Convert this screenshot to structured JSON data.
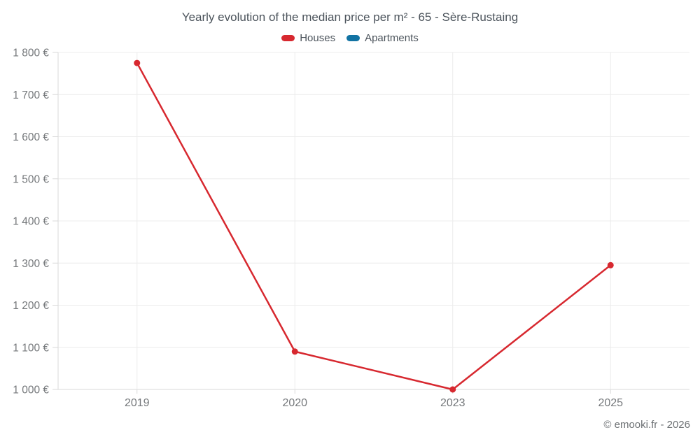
{
  "header": {
    "title": "Yearly evolution of the median price per m² - 65 - Sère-Rustaing"
  },
  "legend": {
    "items": [
      {
        "label": "Houses",
        "color": "#d7282f"
      },
      {
        "label": "Apartments",
        "color": "#1273a3"
      }
    ]
  },
  "footer": {
    "credit": "© emooki.fr - 2026"
  },
  "chart_data": {
    "type": "line",
    "title": "Yearly evolution of the median price per m² - 65 - Sère-Rustaing",
    "categories": [
      "2019",
      "2020",
      "2023",
      "2025"
    ],
    "series": [
      {
        "name": "Houses",
        "color": "#d7282f",
        "values": [
          1775,
          1090,
          1000,
          1295
        ]
      },
      {
        "name": "Apartments",
        "color": "#1273a3",
        "values": []
      }
    ],
    "xlabel": "",
    "ylabel": "",
    "ylim": [
      1000,
      1800
    ],
    "y_ticks": [
      1000,
      1100,
      1200,
      1300,
      1400,
      1500,
      1600,
      1700,
      1800
    ],
    "y_tick_labels": [
      "1 000 €",
      "1 100 €",
      "1 200 €",
      "1 300 €",
      "1 400 €",
      "1 500 €",
      "1 600 €",
      "1 700 €",
      "1 800 €"
    ],
    "grid": true,
    "legend_position": "top",
    "colors": {
      "grid_line": "#ececec",
      "axis_line": "#d9d9d9",
      "tick_text": "#75787b",
      "title_text": "#4b535b"
    }
  }
}
